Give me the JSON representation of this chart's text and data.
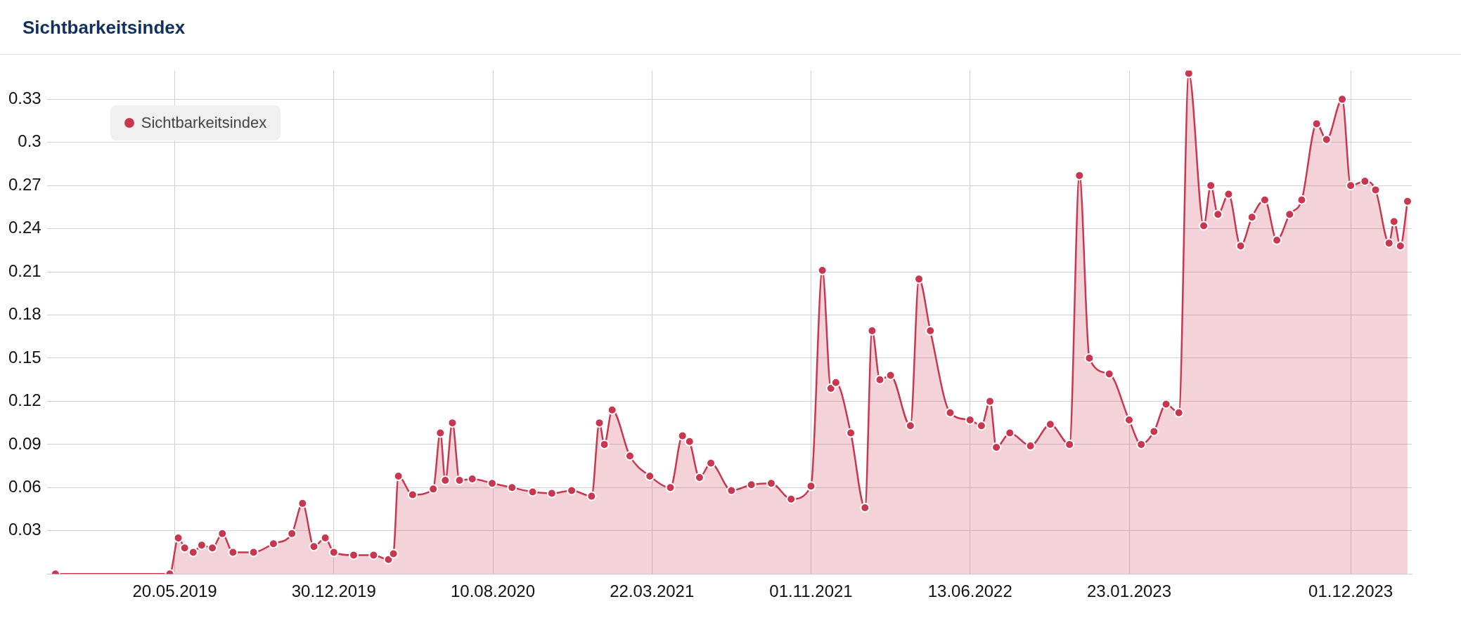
{
  "chart_data": {
    "type": "area",
    "title": "Sichtbarkeitsindex",
    "xlim": [
      "2018-11-21",
      "2024-02-25"
    ],
    "xticks": [
      {
        "value": "2019-05-20",
        "label": "20.05.2019"
      },
      {
        "value": "2019-12-30",
        "label": "30.12.2019"
      },
      {
        "value": "2020-08-10",
        "label": "10.08.2020"
      },
      {
        "value": "2021-03-22",
        "label": "22.03.2021"
      },
      {
        "value": "2021-11-01",
        "label": "01.11.2021"
      },
      {
        "value": "2022-06-13",
        "label": "13.06.2022"
      },
      {
        "value": "2023-01-23",
        "label": "23.01.2023"
      },
      {
        "value": "2023-12-01",
        "label": "01.12.2023"
      }
    ],
    "ylim": [
      0,
      0.35
    ],
    "yticks": [
      0.03,
      0.06,
      0.09,
      0.12,
      0.15,
      0.18,
      0.21,
      0.24,
      0.27,
      0.3,
      0.33
    ],
    "grid": true,
    "legend": "top left",
    "marker": "circle",
    "line_style": "solid",
    "series": [
      {
        "name": "Sichtbarkeitsindex",
        "color": "#c8374f",
        "x": [
          "2018-12-03",
          "2019-05-13",
          "2019-05-25",
          "2019-06-03",
          "2019-06-15",
          "2019-06-27",
          "2019-07-12",
          "2019-07-26",
          "2019-08-10",
          "2019-09-08",
          "2019-10-06",
          "2019-11-01",
          "2019-11-16",
          "2019-12-02",
          "2019-12-18",
          "2019-12-30",
          "2020-01-27",
          "2020-02-24",
          "2020-03-16",
          "2020-03-23",
          "2020-03-30",
          "2020-04-19",
          "2020-05-18",
          "2020-05-28",
          "2020-06-04",
          "2020-06-14",
          "2020-06-24",
          "2020-07-12",
          "2020-08-09",
          "2020-09-06",
          "2020-10-05",
          "2020-11-01",
          "2020-11-29",
          "2020-12-27",
          "2021-01-07",
          "2021-01-14",
          "2021-01-25",
          "2021-02-19",
          "2021-03-19",
          "2021-04-17",
          "2021-05-04",
          "2021-05-14",
          "2021-05-28",
          "2021-06-13",
          "2021-07-12",
          "2021-08-09",
          "2021-09-06",
          "2021-10-04",
          "2021-11-01",
          "2021-11-17",
          "2021-11-29",
          "2021-12-06",
          "2021-12-27",
          "2022-01-16",
          "2022-01-26",
          "2022-02-06",
          "2022-02-21",
          "2022-03-21",
          "2022-04-02",
          "2022-04-18",
          "2022-05-16",
          "2022-06-13",
          "2022-06-29",
          "2022-07-11",
          "2022-07-20",
          "2022-08-08",
          "2022-09-06",
          "2022-10-04",
          "2022-10-31",
          "2022-11-14",
          "2022-11-28",
          "2022-12-26",
          "2023-01-23",
          "2023-02-09",
          "2023-02-27",
          "2023-03-16",
          "2023-04-03",
          "2023-04-17",
          "2023-05-08",
          "2023-05-18",
          "2023-05-28",
          "2023-06-12",
          "2023-06-29",
          "2023-07-15",
          "2023-08-02",
          "2023-08-19",
          "2023-09-06",
          "2023-09-23",
          "2023-10-14",
          "2023-10-28",
          "2023-11-19",
          "2023-12-01",
          "2023-12-21",
          "2024-01-05",
          "2024-01-24",
          "2024-01-31",
          "2024-02-09",
          "2024-02-19"
        ],
        "values": [
          0,
          0,
          0.025,
          0.018,
          0.015,
          0.02,
          0.018,
          0.028,
          0.015,
          0.015,
          0.021,
          0.028,
          0.049,
          0.019,
          0.025,
          0.015,
          0.013,
          0.013,
          0.01,
          0.014,
          0.068,
          0.055,
          0.059,
          0.098,
          0.065,
          0.105,
          0.065,
          0.066,
          0.063,
          0.06,
          0.057,
          0.056,
          0.058,
          0.054,
          0.105,
          0.09,
          0.114,
          0.082,
          0.068,
          0.06,
          0.096,
          0.092,
          0.067,
          0.077,
          0.058,
          0.062,
          0.063,
          0.052,
          0.061,
          0.211,
          0.129,
          0.133,
          0.098,
          0.046,
          0.169,
          0.135,
          0.138,
          0.103,
          0.205,
          0.169,
          0.112,
          0.107,
          0.103,
          0.12,
          0.088,
          0.098,
          0.089,
          0.104,
          0.09,
          0.277,
          0.15,
          0.139,
          0.107,
          0.09,
          0.099,
          0.118,
          0.112,
          0.348,
          0.242,
          0.27,
          0.25,
          0.264,
          0.228,
          0.248,
          0.26,
          0.232,
          0.25,
          0.26,
          0.313,
          0.302,
          0.33,
          0.27,
          0.273,
          0.267,
          0.23,
          0.245,
          0.228,
          0.259
        ]
      }
    ]
  }
}
